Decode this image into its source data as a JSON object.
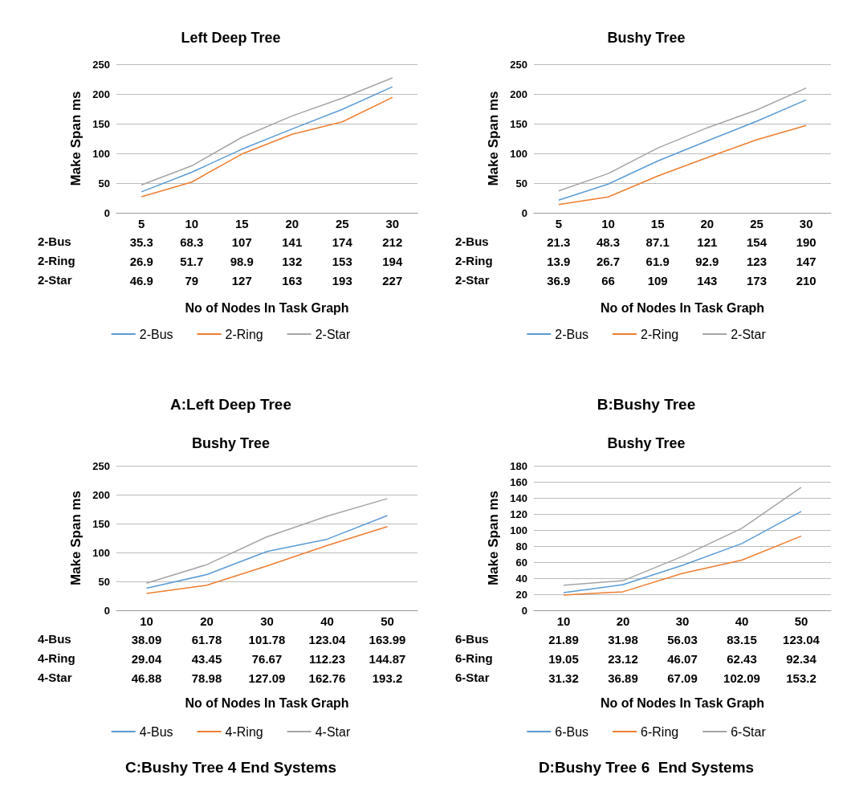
{
  "chart_data": [
    {
      "type": "line",
      "title": "Left Deep Tree",
      "xlabel": "No of Nodes In Task Graph",
      "ylabel": "Make Span ms",
      "categories": [
        "5",
        "10",
        "15",
        "20",
        "25",
        "30"
      ],
      "ylim": [
        0,
        250
      ],
      "yticks": [
        0,
        50,
        100,
        150,
        200,
        250
      ],
      "grid": "y",
      "legend": "bottom",
      "marker": "none",
      "data_labels": true,
      "annotations": [
        "A:Left Deep Tree"
      ],
      "series": [
        {
          "name": "2-Bus",
          "color": "#5b9bd5",
          "values": [
            35.3,
            68.3,
            107,
            141,
            174,
            212
          ]
        },
        {
          "name": "2-Ring",
          "color": "#ed7d31",
          "values": [
            26.9,
            51.7,
            98.9,
            132,
            153,
            194
          ]
        },
        {
          "name": "2-Star",
          "color": "#a5a5a5",
          "values": [
            46.9,
            79,
            127,
            163,
            193,
            227
          ]
        }
      ]
    },
    {
      "type": "line",
      "title": "Bushy Tree",
      "xlabel": "No of Nodes In Task Graph",
      "ylabel": "Make Span ms",
      "categories": [
        "5",
        "10",
        "15",
        "20",
        "25",
        "30"
      ],
      "ylim": [
        0,
        250
      ],
      "yticks": [
        0,
        50,
        100,
        150,
        200,
        250
      ],
      "grid": "y",
      "legend": "bottom",
      "marker": "none",
      "data_labels": true,
      "annotations": [
        "B:Bushy Tree"
      ],
      "series": [
        {
          "name": "2-Bus",
          "color": "#5b9bd5",
          "values": [
            21.3,
            48.3,
            87.1,
            121,
            154,
            190
          ]
        },
        {
          "name": "2-Ring",
          "color": "#ed7d31",
          "values": [
            13.9,
            26.7,
            61.9,
            92.9,
            123,
            147
          ]
        },
        {
          "name": "2-Star",
          "color": "#a5a5a5",
          "values": [
            36.9,
            66,
            109,
            143,
            173,
            210
          ]
        }
      ]
    },
    {
      "type": "line",
      "title": "Bushy Tree",
      "xlabel": "No of Nodes In Task Graph",
      "ylabel": "Make Span ms",
      "categories": [
        "10",
        "20",
        "30",
        "40",
        "50"
      ],
      "ylim": [
        0,
        250
      ],
      "yticks": [
        0,
        50,
        100,
        150,
        200,
        250
      ],
      "grid": "y",
      "legend": "bottom",
      "marker": "none",
      "data_labels": true,
      "annotations": [
        "C:Bushy Tree 4 End Systems"
      ],
      "series": [
        {
          "name": "4-Bus",
          "color": "#5b9bd5",
          "values": [
            38.09,
            61.78,
            101.78,
            123.04,
            163.99
          ]
        },
        {
          "name": "4-Ring",
          "color": "#ed7d31",
          "values": [
            29.04,
            43.45,
            76.67,
            112.23,
            144.87
          ]
        },
        {
          "name": "4-Star",
          "color": "#a5a5a5",
          "values": [
            46.88,
            78.98,
            127.09,
            162.76,
            193.2
          ]
        }
      ]
    },
    {
      "type": "line",
      "title": "Bushy Tree",
      "xlabel": "No of Nodes In Task Graph",
      "ylabel": "Make Span ms",
      "categories": [
        "10",
        "20",
        "30",
        "40",
        "50"
      ],
      "ylim": [
        0,
        180
      ],
      "yticks": [
        0,
        20,
        40,
        60,
        80,
        100,
        120,
        140,
        160,
        180
      ],
      "grid": "y",
      "legend": "bottom",
      "marker": "none",
      "data_labels": true,
      "annotations": [
        "D:Bushy Tree 6  End Systems"
      ],
      "series": [
        {
          "name": "6-Bus",
          "color": "#5b9bd5",
          "values": [
            21.89,
            31.98,
            56.03,
            83.15,
            123.04
          ]
        },
        {
          "name": "6-Ring",
          "color": "#ed7d31",
          "values": [
            19.05,
            23.12,
            46.07,
            62.43,
            92.34
          ]
        },
        {
          "name": "6-Star",
          "color": "#a5a5a5",
          "values": [
            31.32,
            36.89,
            67.09,
            102.09,
            153.2
          ]
        }
      ]
    }
  ]
}
